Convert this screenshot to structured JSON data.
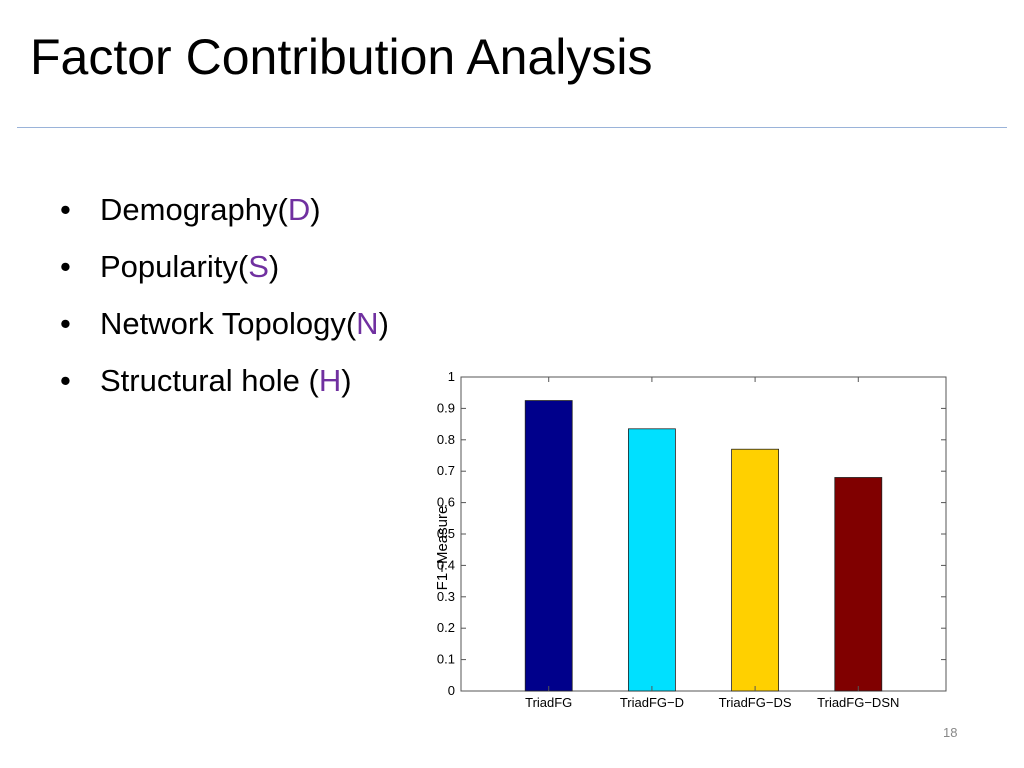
{
  "slide": {
    "title": "Factor Contribution Analysis",
    "bullets": [
      {
        "text": "Demography(",
        "accent": "D",
        "close": ")"
      },
      {
        "text": "Popularity(",
        "accent": "S",
        "close": ")"
      },
      {
        "text": "Network Topology(",
        "accent": "N",
        "close": ")"
      },
      {
        "text": "Structural hole (",
        "accent": "H",
        "close": ")"
      }
    ],
    "bullet_symbol": "•",
    "accent_color": "#7030a0",
    "page_number": "18"
  },
  "chart_data": {
    "type": "bar",
    "categories": [
      "TriadFG",
      "TriadFG−D",
      "TriadFG−DS",
      "TriadFG−DSN"
    ],
    "values": [
      0.925,
      0.835,
      0.77,
      0.68
    ],
    "colors": [
      "#00008b",
      "#00e0ff",
      "#ffd000",
      "#800000"
    ],
    "title": "",
    "xlabel": "",
    "ylabel": "F1−Measure",
    "ylim": [
      0,
      1
    ],
    "yticks": [
      {
        "value": 0,
        "label": "0"
      },
      {
        "value": 0.1,
        "label": "0.1"
      },
      {
        "value": 0.2,
        "label": "0.2"
      },
      {
        "value": 0.3,
        "label": "0.3"
      },
      {
        "value": 0.4,
        "label": "0.4"
      },
      {
        "value": 0.5,
        "label": "0.5"
      },
      {
        "value": 0.6,
        "label": "0.6"
      },
      {
        "value": 0.7,
        "label": "0.7"
      },
      {
        "value": 0.8,
        "label": "0.8"
      },
      {
        "value": 0.9,
        "label": "0.9"
      },
      {
        "value": 1,
        "label": "1"
      }
    ],
    "grid": false
  }
}
